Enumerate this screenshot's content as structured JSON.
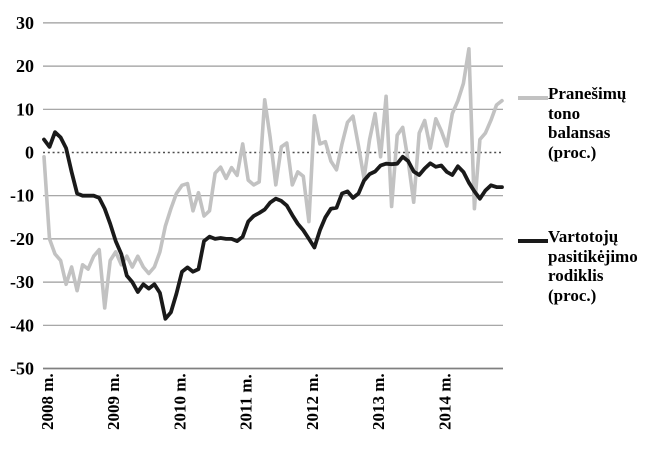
{
  "chart_data": {
    "type": "line",
    "title": "",
    "x_axis": {
      "unit": "month",
      "start_label": "2008 m.",
      "end_label": "2014 m.",
      "tick_labels": [
        "2008 m.",
        "2009 m.",
        "2010 m.",
        "2011 m.",
        "2012 m.",
        "2013 m.",
        "2014 m."
      ],
      "months_per_tick": 12
    },
    "y_axis": {
      "min": -50,
      "max": 30,
      "tick_step": 10,
      "ticks": [
        30,
        20,
        10,
        0,
        -10,
        -20,
        -30,
        -40,
        -50
      ],
      "grid": true,
      "zero_line_style": "dotted",
      "grid_color": "#9b9b9b",
      "axis_line_color": "#808080",
      "zero_line_color": "#4d4d4d"
    },
    "legend_position": "right",
    "series": [
      {
        "name": "Pranešimų tono balansas (proc.)",
        "legend_lines": [
          "Pranešimų",
          "tono",
          "balansas",
          "(proc.)"
        ],
        "color": "#c2c2c2",
        "stroke_width": 3.6,
        "values": [
          -1,
          -20,
          -23.5,
          -25,
          -30.5,
          -26.5,
          -32,
          -26,
          -27,
          -24,
          -22.5,
          -36,
          -25,
          -23,
          -26,
          -24,
          -26.5,
          -24,
          -26.5,
          -28,
          -26.5,
          -23,
          -17,
          -13,
          -9.5,
          -7.6,
          -7.2,
          -13.5,
          -9.3,
          -14.7,
          -13.5,
          -4.8,
          -3.4,
          -6,
          -3.5,
          -5.3,
          2,
          -6.4,
          -7.5,
          -6.8,
          12.2,
          3.4,
          -7.5,
          1.3,
          2.2,
          -7.5,
          -4.5,
          -5.5,
          -16,
          8.5,
          2,
          2.5,
          -2,
          -4,
          2,
          7,
          8.4,
          1.5,
          -6,
          3,
          9,
          -1,
          13,
          -12.5,
          4,
          5.8,
          -2,
          -11.5,
          4.5,
          7.4,
          1,
          7.8,
          5,
          1.5,
          9,
          12,
          16,
          24,
          -13,
          3,
          4.5,
          7.5,
          11,
          12
        ]
      },
      {
        "name": "Vartotojų pasitikėjimo rodiklis (proc.)",
        "legend_lines": [
          "Vartotojų",
          "pasitikėjimo",
          "rodiklis",
          "(proc.)"
        ],
        "color": "#1a1a1a",
        "stroke_width": 3.8,
        "values": [
          3,
          1.3,
          4.7,
          3.5,
          1,
          -4.5,
          -9.5,
          -10,
          -10,
          -10,
          -10.5,
          -13,
          -16.5,
          -20.5,
          -23.5,
          -28.5,
          -30,
          -32.3,
          -30.5,
          -31.5,
          -30.5,
          -32.5,
          -38.5,
          -37,
          -32.7,
          -27.6,
          -26.6,
          -27.6,
          -27,
          -20.5,
          -19.5,
          -20,
          -19.8,
          -20,
          -20,
          -20.5,
          -19.5,
          -16,
          -14.7,
          -14,
          -13.2,
          -11.6,
          -10.7,
          -11.2,
          -12.3,
          -14.5,
          -16.5,
          -18,
          -20,
          -22,
          -18,
          -15,
          -13,
          -12.8,
          -9.5,
          -9,
          -10.5,
          -9.5,
          -6.5,
          -5,
          -4.4,
          -3,
          -2.6,
          -2.7,
          -2.6,
          -1,
          -2,
          -4.4,
          -5.2,
          -3.7,
          -2.5,
          -3.3,
          -3,
          -4.5,
          -5.2,
          -3.2,
          -4.5,
          -7,
          -9,
          -10.7,
          -8.8,
          -7.6,
          -8,
          -8
        ]
      }
    ]
  }
}
